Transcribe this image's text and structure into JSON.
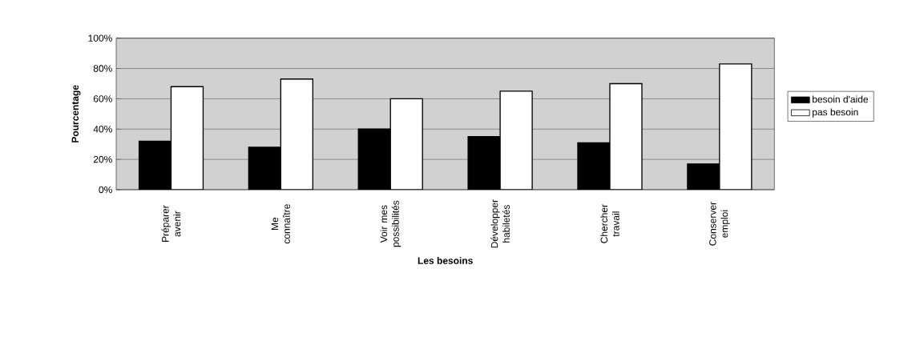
{
  "chart_data": {
    "type": "bar",
    "xlabel": "Les besoins",
    "ylabel": "Pourcentage",
    "categories": [
      "Préparer avenir",
      "Me connaître",
      "Voir mes possibilités",
      "Développer habiletés",
      "Chercher travail",
      "Conserver emploi"
    ],
    "series": [
      {
        "name": "besoin d'aide",
        "color": "#000000",
        "values": [
          32,
          28,
          40,
          35,
          31,
          17
        ]
      },
      {
        "name": "pas besoin",
        "color": "#ffffff",
        "values": [
          68,
          73,
          60,
          65,
          70,
          83
        ]
      }
    ],
    "ylim": [
      0,
      100
    ],
    "yticks": [
      {
        "value": 0,
        "label": "0%"
      },
      {
        "value": 20,
        "label": "20%"
      },
      {
        "value": 40,
        "label": "40%"
      },
      {
        "value": 60,
        "label": "60%"
      },
      {
        "value": 80,
        "label": "80%"
      },
      {
        "value": 100,
        "label": "100%"
      }
    ],
    "grid": "y",
    "legend": "right"
  }
}
